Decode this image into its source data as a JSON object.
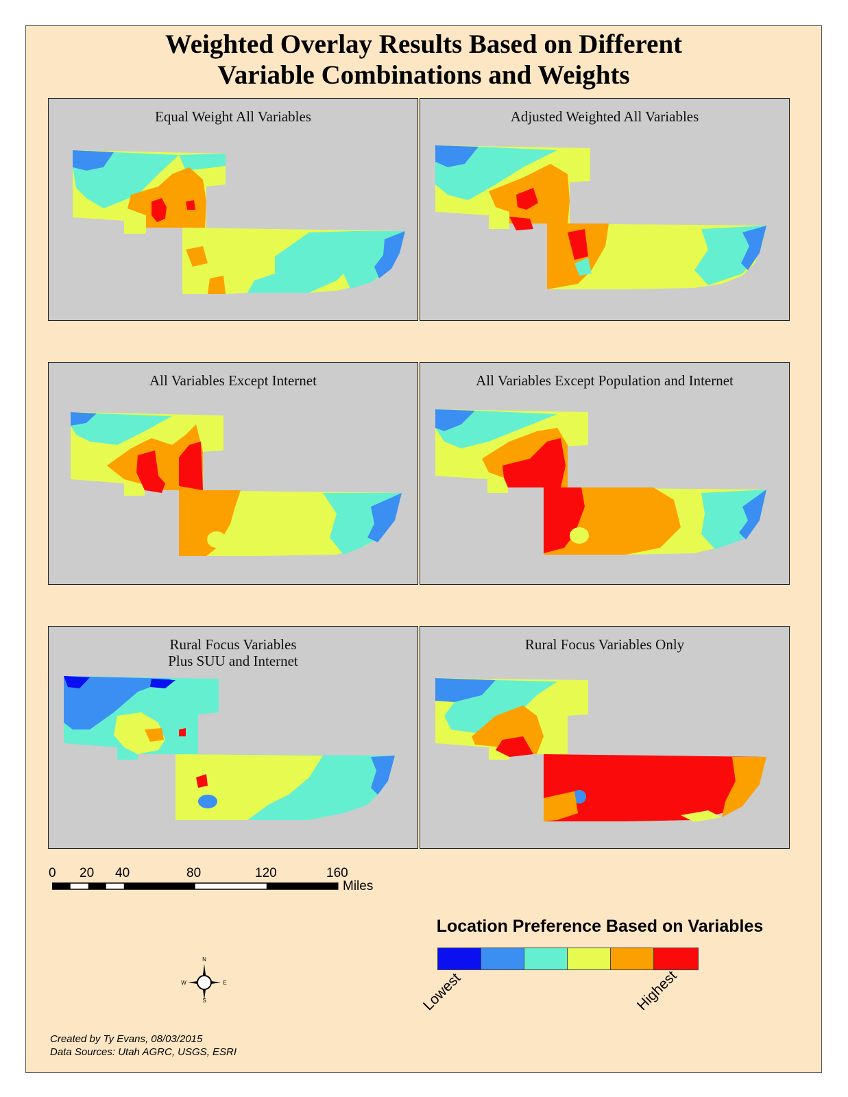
{
  "title_line1": "Weighted Overlay Results Based on Different",
  "title_line2": "Variable Combinations and Weights",
  "panels": [
    {
      "title": "Equal Weight All Variables"
    },
    {
      "title": "Adjusted Weighted All Variables"
    },
    {
      "title": "All Variables Except Internet"
    },
    {
      "title": "All Variables Except Population and Internet"
    },
    {
      "title_line1": "Rural Focus Variables",
      "title_line2": "Plus SUU and Internet"
    },
    {
      "title": "Rural Focus Variables Only"
    }
  ],
  "scale_bar": {
    "ticks": [
      "0",
      "20",
      "40",
      "80",
      "120",
      "160"
    ],
    "unit": "Miles"
  },
  "legend": {
    "title": "Location Preference Based on Variables",
    "low_label": "Lowest",
    "high_label": "Highest",
    "classes": [
      "#0a10f0",
      "#3b8ff2",
      "#64f0d0",
      "#e6fa50",
      "#fca000",
      "#fa0a0a"
    ]
  },
  "compass": {
    "n": "N",
    "s": "S",
    "e": "E",
    "w": "W"
  },
  "credits": {
    "line1": "Created by Ty Evans, 08/03/2015",
    "line2": "Data Sources: Utah AGRC, USGS, ESRI"
  }
}
